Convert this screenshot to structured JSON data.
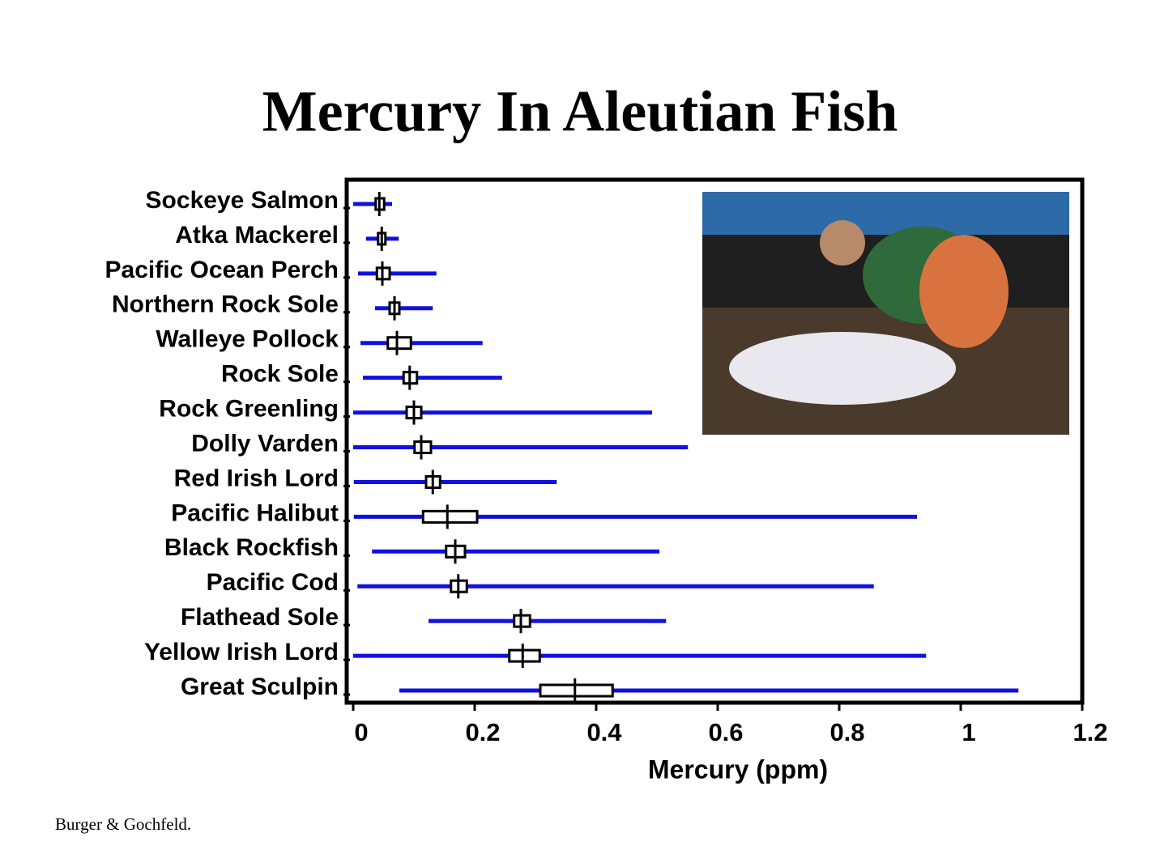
{
  "chart_data": {
    "type": "range-box",
    "title": "Mercury In Aleutian Fish",
    "x_label": "Mercury (ppm)",
    "source": "Burger & Gochfeld.",
    "categories": [
      "Sockeye Salmon",
      "Atka Mackerel",
      "Pacific Ocean Perch",
      "Northern Rock Sole",
      "Walleye Pollock",
      "Rock Sole",
      "Rock Greenling",
      "Dolly Varden",
      "Red Irish Lord",
      "Pacific Halibut",
      "Black Rockfish",
      "Pacific Cod",
      "Flathead Sole",
      "Yellow Irish Lord",
      "Great Sculpin"
    ],
    "min": [
      0,
      0.021,
      0.008,
      0.036,
      0.012,
      0.016,
      0,
      0,
      0.001,
      0.001,
      0.031,
      0.007,
      0.124,
      0,
      0.076
    ],
    "max": [
      0.064,
      0.075,
      0.137,
      0.131,
      0.213,
      0.245,
      0.492,
      0.551,
      0.335,
      0.928,
      0.504,
      0.857,
      0.515,
      0.943,
      1.095
    ],
    "box_low": [
      0.037,
      0.041,
      0.039,
      0.06,
      0.057,
      0.083,
      0.088,
      0.101,
      0.12,
      0.115,
      0.153,
      0.161,
      0.265,
      0.257,
      0.308
    ],
    "box_high": [
      0.051,
      0.053,
      0.06,
      0.076,
      0.095,
      0.105,
      0.112,
      0.128,
      0.143,
      0.204,
      0.184,
      0.187,
      0.291,
      0.307,
      0.427
    ],
    "mean": [
      0.043,
      0.047,
      0.048,
      0.068,
      0.072,
      0.093,
      0.1,
      0.112,
      0.131,
      0.155,
      0.168,
      0.173,
      0.276,
      0.279,
      0.365
    ],
    "range_color": "#1010e0",
    "xlim": [
      0,
      1.2
    ],
    "xticks": [
      0,
      0.2,
      0.4,
      0.6,
      0.8,
      1,
      1.2
    ]
  }
}
